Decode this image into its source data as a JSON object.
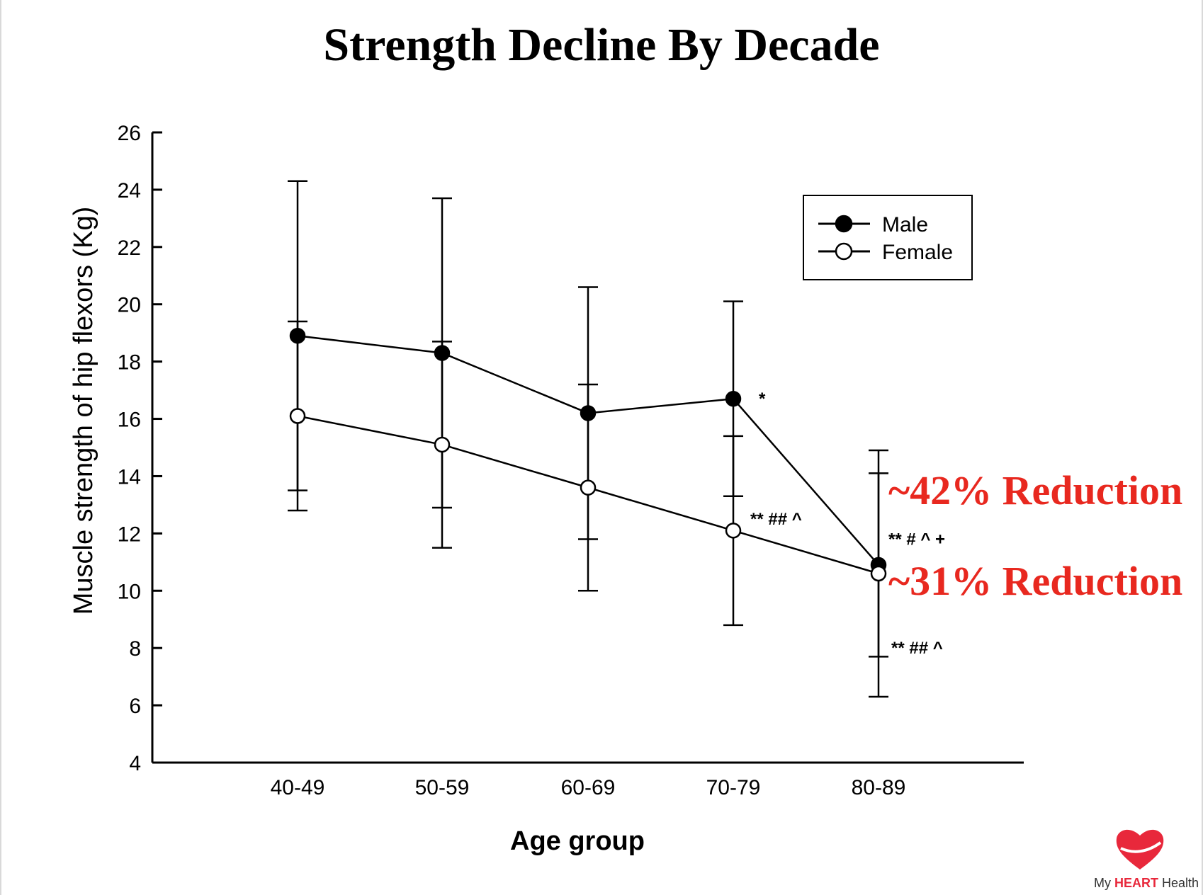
{
  "slide": {
    "title": "Strength Decline By Decade"
  },
  "chart_data": {
    "type": "line",
    "title": "Strength Decline By Decade",
    "xlabel": "Age group",
    "ylabel": "Muscle strength of hip flexors (Kg)",
    "categories": [
      "40-49",
      "50-59",
      "60-69",
      "70-79",
      "80-89"
    ],
    "ylim": [
      4,
      26
    ],
    "yticks": [
      4,
      6,
      8,
      10,
      12,
      14,
      16,
      18,
      20,
      22,
      24,
      26
    ],
    "legend_position": "top-right",
    "series": [
      {
        "name": "Male",
        "marker": "filled-circle",
        "values": [
          18.9,
          18.3,
          16.2,
          16.7,
          10.9
        ],
        "err_low": [
          13.5,
          12.9,
          11.8,
          13.3,
          7.7
        ],
        "err_high": [
          24.3,
          23.7,
          20.6,
          20.1,
          14.9
        ]
      },
      {
        "name": "Female",
        "marker": "open-circle",
        "values": [
          16.1,
          15.1,
          13.6,
          12.1,
          10.6
        ],
        "err_low": [
          12.8,
          11.5,
          10.0,
          8.8,
          6.3
        ],
        "err_high": [
          19.4,
          18.7,
          17.2,
          15.4,
          14.1
        ]
      }
    ],
    "annotations": [
      {
        "text": "*",
        "category": "70-79",
        "y": 16.7
      },
      {
        "text": "** ## ^",
        "category": "70-79",
        "y": 12.5
      },
      {
        "text": "** # ^ +",
        "category": "80-89",
        "y": 11.8
      },
      {
        "text": "** ## ^",
        "category": "80-89",
        "y": 8.3
      }
    ],
    "callouts": [
      {
        "text": "~42% Reduction",
        "color": "#e8281f"
      },
      {
        "text": "~31% Reduction",
        "color": "#e8281f"
      }
    ]
  },
  "logo": {
    "prefix": "My ",
    "highlight": "HEART",
    "suffix": " Health",
    "color": "#e8283b"
  }
}
